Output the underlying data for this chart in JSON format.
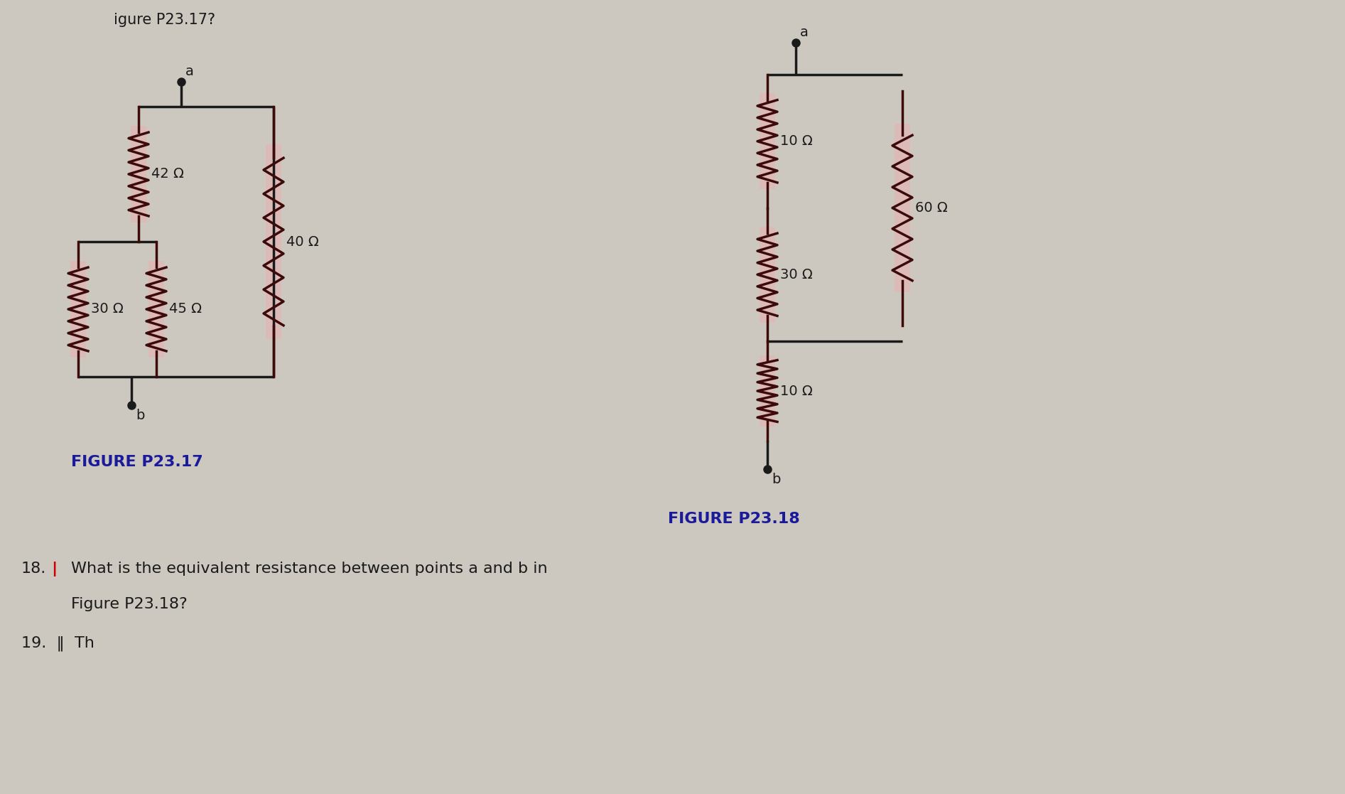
{
  "bg_color": "#ccc8c0",
  "resistor_color": "#3d0a0a",
  "resistor_highlight": "#e8b0b0",
  "wire_color": "#1a1a1a",
  "label_color": "#1a1a1a",
  "figure_label_color": "#1a1a9a",
  "text_color": "#1a1a1a",
  "fig1_caption": "FIGURE P23.17",
  "fig2_caption": "FIGURE P23.18",
  "top_text": "igure P23.17?",
  "q18_num": "18.",
  "q18_bar": "|",
  "q18_text": "What is the equivalent resistance between points a and b in",
  "q18_text2": "Figure P23.18?",
  "q19_text": "19.  ‖  Th"
}
